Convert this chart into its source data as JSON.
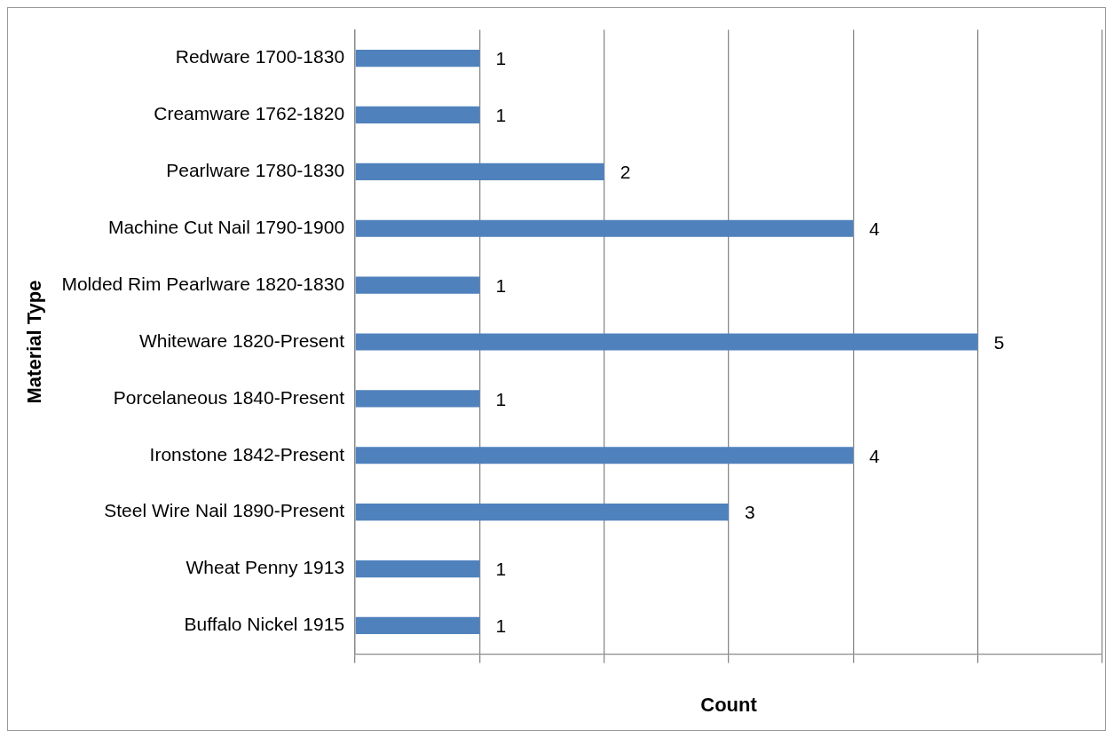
{
  "chart_data": {
    "type": "bar",
    "orientation": "horizontal",
    "xlabel": "Count",
    "ylabel": "Material Type",
    "categories": [
      "Redware 1700-1830",
      "Creamware 1762-1820",
      "Pearlware 1780-1830",
      "Machine Cut Nail 1790-1900",
      "Molded Rim Pearlware 1820-1830",
      "Whiteware 1820-Present",
      "Porcelaneous 1840-Present",
      "Ironstone 1842-Present",
      "Steel Wire Nail 1890-Present",
      "Wheat Penny 1913",
      "Buffalo Nickel 1915"
    ],
    "values": [
      1,
      1,
      2,
      4,
      1,
      5,
      1,
      4,
      3,
      1,
      1
    ],
    "color": "#4f81bd",
    "xlim": [
      0,
      6
    ],
    "xticks": [
      {
        "value": 0,
        "label": null
      },
      {
        "value": 1,
        "label": null
      },
      {
        "value": 2,
        "label": null
      },
      {
        "value": 3,
        "label": null
      },
      {
        "value": 4,
        "label": null
      },
      {
        "value": 5,
        "label": null
      },
      {
        "value": 6,
        "label": null
      }
    ],
    "tick_labels": "y",
    "grid": "x",
    "legend": false,
    "data_labels": true
  }
}
